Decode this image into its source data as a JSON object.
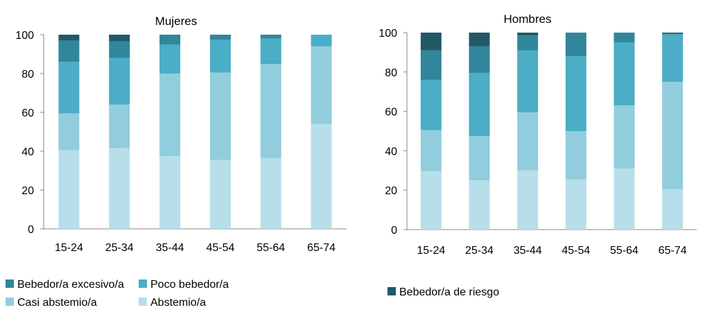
{
  "chart_data": [
    {
      "type": "bar",
      "stacked": true,
      "title": "Mujeres",
      "categories": [
        "15-24",
        "25-34",
        "35-44",
        "45-54",
        "55-64",
        "65-74"
      ],
      "ylim": [
        0,
        100
      ],
      "yticks": [
        "0",
        "20",
        "40",
        "60",
        "80",
        "100"
      ],
      "grid": false,
      "series": [
        {
          "name": "Abstemio/a",
          "values": [
            40.5,
            41.5,
            37.5,
            35.5,
            36.5,
            54
          ],
          "color": "#b7dfe9"
        },
        {
          "name": "Casi abstemio/a",
          "values": [
            19,
            22.5,
            42.5,
            45,
            48.5,
            40
          ],
          "color": "#92cddd"
        },
        {
          "name": "Poco bebedor/a",
          "values": [
            26.5,
            24,
            15,
            17,
            13,
            6
          ],
          "color": "#4badc6"
        },
        {
          "name": "Bebedor/a excesivo/a",
          "values": [
            11,
            8.5,
            5,
            2.5,
            2,
            0
          ],
          "color": "#31869b"
        },
        {
          "name": "Bebedor/a de riesgo",
          "values": [
            3,
            3.5,
            0,
            0,
            0,
            0
          ],
          "color": "#215968"
        }
      ]
    },
    {
      "type": "bar",
      "stacked": true,
      "title": "Hombres",
      "categories": [
        "15-24",
        "25-34",
        "35-44",
        "45-54",
        "55-64",
        "65-74"
      ],
      "ylim": [
        0,
        100
      ],
      "yticks": [
        "0",
        "20",
        "40",
        "60",
        "80",
        "100"
      ],
      "grid": false,
      "series": [
        {
          "name": "Abstemio/a",
          "values": [
            29.5,
            25,
            30,
            25.5,
            31,
            20.5
          ],
          "color": "#b7dfe9"
        },
        {
          "name": "Casi abstemio/a",
          "values": [
            21,
            22.5,
            29.5,
            24.5,
            32,
            54.5
          ],
          "color": "#92cddd"
        },
        {
          "name": "Poco bebedor/a",
          "values": [
            25.5,
            32,
            31.5,
            38,
            32,
            24
          ],
          "color": "#4badc6"
        },
        {
          "name": "Bebedor/a excesivo/a",
          "values": [
            15,
            13.5,
            7.5,
            12,
            5,
            0.5
          ],
          "color": "#31869b"
        },
        {
          "name": "Bebedor/a de riesgo",
          "values": [
            9,
            7,
            1.5,
            0,
            0,
            0.5
          ],
          "color": "#215968"
        }
      ]
    }
  ],
  "legend": {
    "items": [
      {
        "label": "Bebedor/a excesivo/a",
        "color": "#31869b"
      },
      {
        "label": "Poco bebedor/a",
        "color": "#4badc6"
      },
      {
        "label": "Casi abstemio/a",
        "color": "#92cddd"
      },
      {
        "label": "Abstemio/a",
        "color": "#b7dfe9"
      },
      {
        "label": "Bebedor/a de riesgo",
        "color": "#215968"
      }
    ]
  }
}
